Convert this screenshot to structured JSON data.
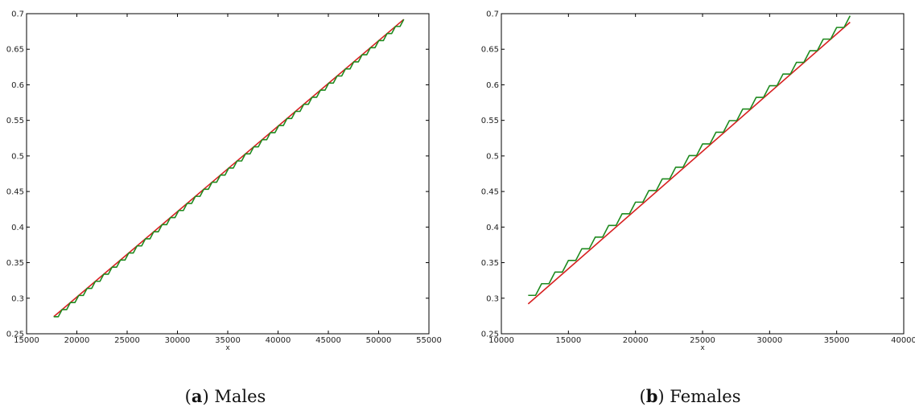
{
  "chart_data": [
    {
      "type": "line",
      "title": "",
      "caption_letter": "a",
      "caption_text": "Males",
      "xlabel": "x",
      "ylabel": "",
      "xlim": [
        15000,
        55000
      ],
      "ylim": [
        0.25,
        0.7
      ],
      "xticks": [
        "15000",
        "20000",
        "25000",
        "30000",
        "35000",
        "40000",
        "45000",
        "50000",
        "55000"
      ],
      "yticks": [
        "0.25",
        "0.3",
        "0.35",
        "0.4",
        "0.45",
        "0.5",
        "0.55",
        "0.6",
        "0.65",
        "0.7"
      ],
      "grid": false,
      "series": [
        {
          "color": "#d62020",
          "kind": "linear",
          "x": [
            17700,
            52500
          ],
          "y": [
            0.274,
            0.692
          ]
        },
        {
          "color": "#1f8a1f",
          "kind": "step",
          "x_start": 17700,
          "x_end": 52500,
          "y_start": 0.274,
          "y_end": 0.692,
          "n_steps": 42
        }
      ]
    },
    {
      "type": "line",
      "title": "",
      "caption_letter": "b",
      "caption_text": "Females",
      "xlabel": "x",
      "ylabel": "",
      "xlim": [
        10000,
        40000
      ],
      "ylim": [
        0.25,
        0.7
      ],
      "xticks": [
        "10000",
        "15000",
        "20000",
        "25000",
        "30000",
        "35000",
        "40000"
      ],
      "yticks": [
        "0.25",
        "0.3",
        "0.35",
        "0.4",
        "0.45",
        "0.5",
        "0.55",
        "0.6",
        "0.65",
        "0.7"
      ],
      "grid": false,
      "series": [
        {
          "color": "#d62020",
          "kind": "linear",
          "x": [
            12000,
            36000
          ],
          "y": [
            0.292,
            0.688
          ]
        },
        {
          "color": "#1f8a1f",
          "kind": "step",
          "x_start": 12000,
          "x_end": 36000,
          "y_start": 0.304,
          "y_end": 0.697,
          "n_steps": 24
        }
      ]
    }
  ]
}
